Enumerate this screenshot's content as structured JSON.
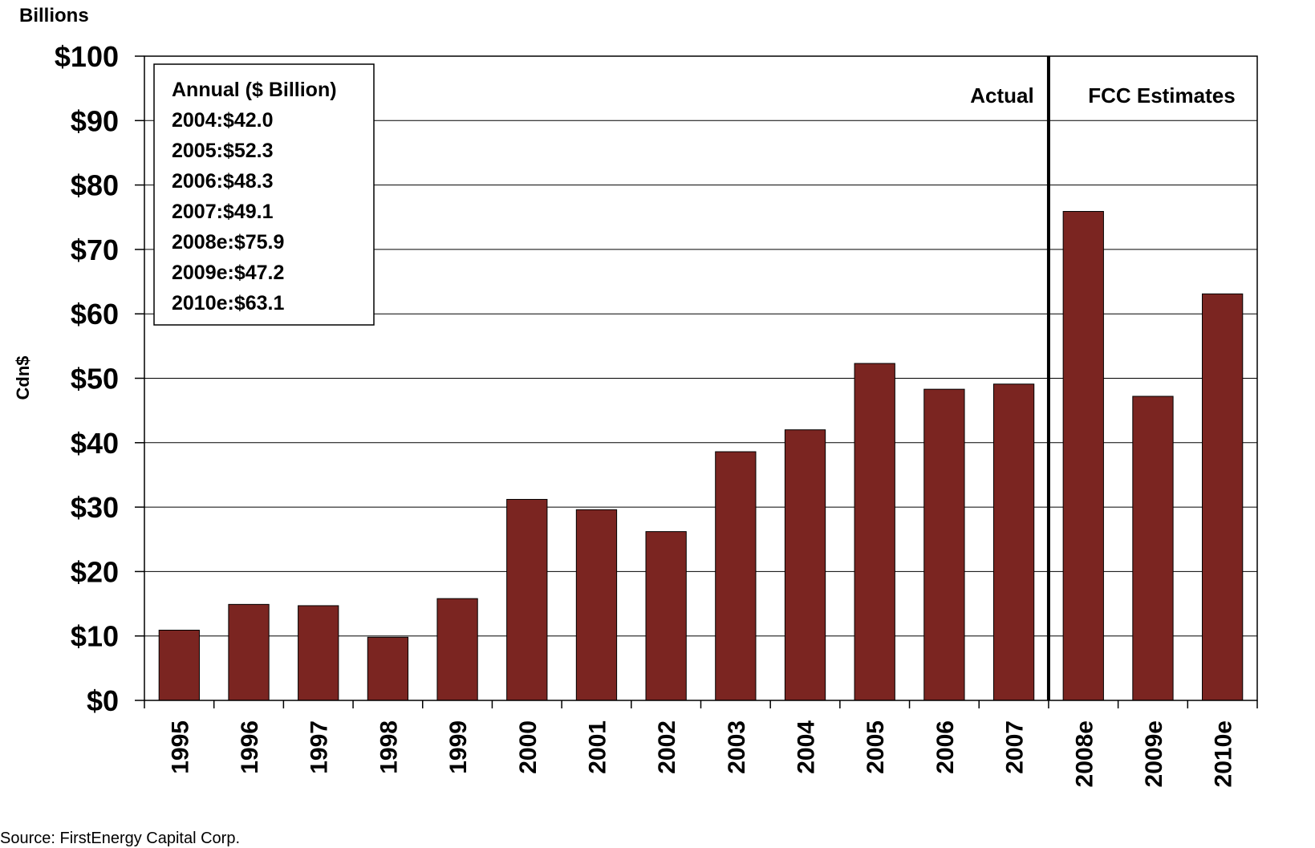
{
  "chart_data": {
    "type": "bar",
    "unit_label": "Billions",
    "ylabel": "Cdn$",
    "ylim": [
      0,
      100
    ],
    "y_ticks": [
      "$0",
      "$10",
      "$20",
      "$30",
      "$40",
      "$50",
      "$60",
      "$70",
      "$80",
      "$90",
      "$100"
    ],
    "grid": true,
    "categories": [
      "1995",
      "1996",
      "1997",
      "1998",
      "1999",
      "2000",
      "2001",
      "2002",
      "2003",
      "2004",
      "2005",
      "2006",
      "2007",
      "2008e",
      "2009e",
      "2010e"
    ],
    "values": [
      10.9,
      14.9,
      14.7,
      9.8,
      15.8,
      31.2,
      29.6,
      26.2,
      38.6,
      42.0,
      52.3,
      48.3,
      49.1,
      75.9,
      47.2,
      63.1
    ],
    "bar_color": "#7B2521",
    "regions": [
      {
        "label": "Actual",
        "from": "1995",
        "to": "2007"
      },
      {
        "label": "FCC Estimates",
        "from": "2008e",
        "to": "2010e"
      }
    ],
    "annotation_box": {
      "title": "Annual ($ Billion)",
      "lines": [
        "2004:$42.0",
        "2005:$52.3",
        "2006:$48.3",
        "2007:$49.1",
        "2008e:$75.9",
        "2009e:$47.2",
        "2010e:$63.1"
      ]
    }
  },
  "source_text": "Source: FirstEnergy Capital Corp."
}
